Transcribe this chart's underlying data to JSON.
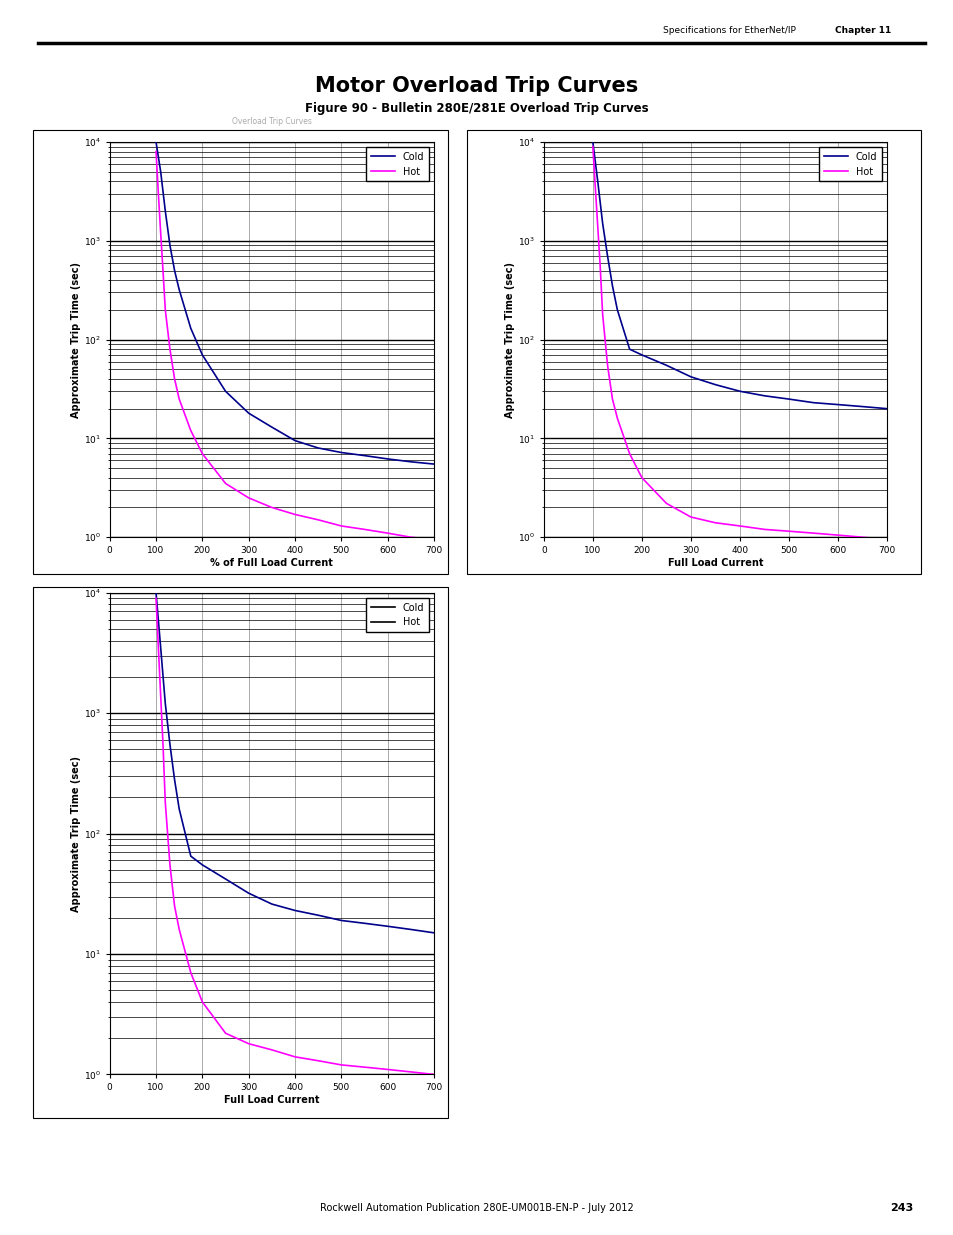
{
  "title": "Motor Overload Trip Curves",
  "subtitle": "Figure 90 - Bulletin 280E/281E Overload Trip Curves",
  "header_right": "Specifications for EtherNet/IP",
  "chapter": "Chapter 11",
  "footer": "Rockwell Automation Publication 280E-UM001B-EN-P - July 2012",
  "page": "243",
  "plots": [
    {
      "xlabel": "% of Full Load Current",
      "ylabel": "Approximate Trip Time (sec)",
      "cold_color": "#00008B",
      "hot_color": "#FF00FF",
      "cold_x": [
        100,
        110,
        120,
        130,
        140,
        150,
        175,
        200,
        250,
        300,
        350,
        400,
        450,
        500,
        550,
        600,
        650,
        700
      ],
      "cold_y": [
        10000,
        5000,
        2000,
        900,
        500,
        320,
        130,
        70,
        30,
        18,
        13,
        9.5,
        8,
        7.2,
        6.7,
        6.2,
        5.8,
        5.5
      ],
      "hot_x": [
        100,
        105,
        110,
        115,
        120,
        130,
        140,
        150,
        175,
        200,
        250,
        300,
        350,
        400,
        450,
        500,
        550,
        600,
        650,
        700
      ],
      "hot_y": [
        8000,
        3000,
        1200,
        500,
        200,
        80,
        40,
        25,
        12,
        7,
        3.5,
        2.5,
        2.0,
        1.7,
        1.5,
        1.3,
        1.2,
        1.1,
        1.0,
        0.95
      ]
    },
    {
      "xlabel": "Full Load Current",
      "ylabel": "Approximate Trip Time (sec)",
      "cold_color": "#00008B",
      "hot_color": "#FF00FF",
      "cold_x": [
        100,
        110,
        120,
        130,
        140,
        150,
        175,
        200,
        250,
        300,
        350,
        400,
        450,
        500,
        550,
        600,
        650,
        700
      ],
      "cold_y": [
        10000,
        4000,
        1500,
        700,
        350,
        200,
        80,
        70,
        55,
        42,
        35,
        30,
        27,
        25,
        23,
        22,
        21,
        20
      ],
      "hot_x": [
        100,
        105,
        110,
        115,
        120,
        130,
        140,
        150,
        175,
        200,
        250,
        300,
        350,
        400,
        450,
        500,
        550,
        600,
        650,
        700
      ],
      "hot_y": [
        9000,
        3500,
        1400,
        550,
        180,
        55,
        25,
        16,
        7,
        4,
        2.2,
        1.6,
        1.4,
        1.3,
        1.2,
        1.15,
        1.1,
        1.05,
        1.0,
        0.95
      ]
    },
    {
      "xlabel": "Full Load Current",
      "ylabel": "Approximate Trip Time (sec)",
      "cold_color": "#00008B",
      "hot_color": "#FF00FF",
      "cold_x": [
        100,
        110,
        120,
        130,
        140,
        150,
        175,
        200,
        250,
        300,
        350,
        400,
        450,
        500,
        550,
        600,
        650,
        700
      ],
      "cold_y": [
        10000,
        3500,
        1200,
        550,
        280,
        160,
        65,
        55,
        42,
        32,
        26,
        23,
        21,
        19,
        18,
        17,
        16,
        15
      ],
      "hot_x": [
        100,
        105,
        110,
        115,
        120,
        130,
        140,
        150,
        175,
        200,
        250,
        300,
        350,
        400,
        450,
        500,
        550,
        600,
        650,
        700
      ],
      "hot_y": [
        9000,
        3500,
        1400,
        550,
        180,
        55,
        25,
        16,
        7,
        4,
        2.2,
        1.8,
        1.6,
        1.4,
        1.3,
        1.2,
        1.15,
        1.1,
        1.05,
        1.0
      ]
    }
  ],
  "xlim": [
    0,
    700
  ],
  "ylim": [
    1,
    10000
  ],
  "xticks": [
    0,
    100,
    200,
    300,
    400,
    500,
    600,
    700
  ]
}
